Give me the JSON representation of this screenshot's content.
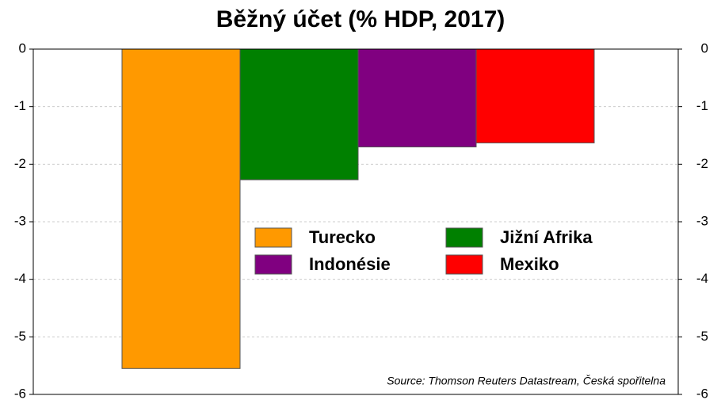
{
  "chart_data": {
    "type": "bar",
    "title": "Běžný účet (% HDP, 2017)",
    "series": [
      {
        "name": "Turecko",
        "color": "#ff9900",
        "values": [
          -5.55
        ]
      },
      {
        "name": "Jižní Afrika",
        "color": "#008000",
        "values": [
          -2.27
        ]
      },
      {
        "name": "Indonésie",
        "color": "#800080",
        "values": [
          -1.7
        ]
      },
      {
        "name": "Mexiko",
        "color": "#ff0000",
        "values": [
          -1.63
        ]
      }
    ],
    "ylim": [
      -6,
      0
    ],
    "yticks": [
      0,
      -1,
      -2,
      -3,
      -4,
      -5,
      -6
    ],
    "y2lim": [
      -6,
      0
    ],
    "y2ticks": [
      0,
      -1,
      -2,
      -3,
      -4,
      -5,
      -6
    ],
    "grid": true,
    "annotation": "Source: Thomson Reuters Datastream, Česká spořitelna"
  }
}
